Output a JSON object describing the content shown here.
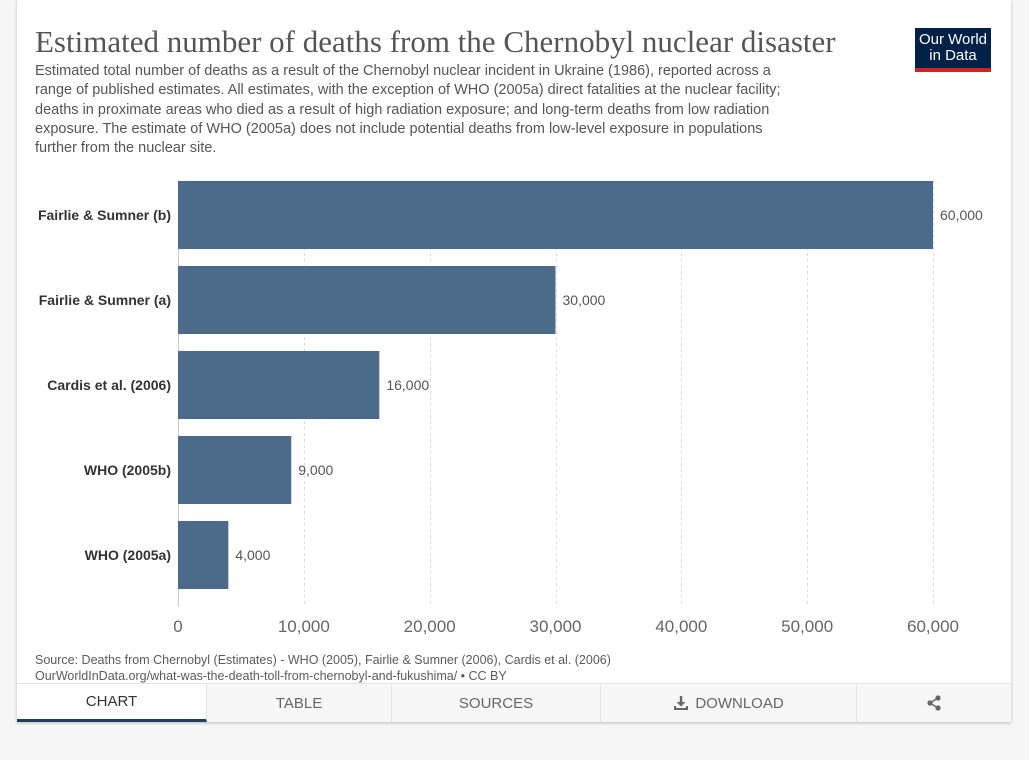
{
  "chart_data": {
    "type": "bar",
    "horizontal": true,
    "title": "Estimated number of deaths from the Chernobyl nuclear disaster",
    "subtitle_lines": [
      "Estimated total number of deaths as a result of the Chernobyl nuclear incident in Ukraine (1986), reported across a",
      "range of published estimates. All estimates, with the exception of WHO (2005a) direct fatalities at the nuclear facility;",
      "deaths in proximate areas who died as a result of high radiation exposure; and long-term deaths from low radiation",
      "exposure. The estimate of WHO (2005a) does not include potential deaths from low-level exposure in populations",
      "further from the nuclear site."
    ],
    "categories": [
      "Fairlie & Sumner (b)",
      "Fairlie & Sumner (a)",
      "Cardis et al. (2006)",
      "WHO (2005b)",
      "WHO (2005a)"
    ],
    "values": [
      60000,
      30000,
      16000,
      9000,
      4000
    ],
    "x_ticks": [
      0,
      10000,
      20000,
      30000,
      40000,
      50000,
      60000
    ],
    "xlim": [
      0,
      60000
    ],
    "grid": true,
    "legend": false,
    "bar_color": "#4c6a8a"
  },
  "logo": {
    "line1": "Our World",
    "line2": "in Data",
    "background": "#002147",
    "stripe": "#ce261e"
  },
  "footer": {
    "source": "Source: Deaths from Chernobyl (Estimates) - WHO (2005), Fairlie & Sumner (2006), Cardis et al. (2006)",
    "url": "OurWorldInData.org/what-was-the-death-toll-from-chernobyl-and-fukushima/",
    "separator": "•",
    "license": "CC BY"
  },
  "tabs": [
    {
      "label": "CHART",
      "active": true
    },
    {
      "label": "TABLE",
      "active": false
    },
    {
      "label": "SOURCES",
      "active": false
    },
    {
      "label": "DOWNLOAD",
      "active": false,
      "icon": "download-icon"
    }
  ],
  "share": {
    "icon": "share-icon"
  },
  "colors": {
    "active_tab_underline": "#1d3d63"
  }
}
